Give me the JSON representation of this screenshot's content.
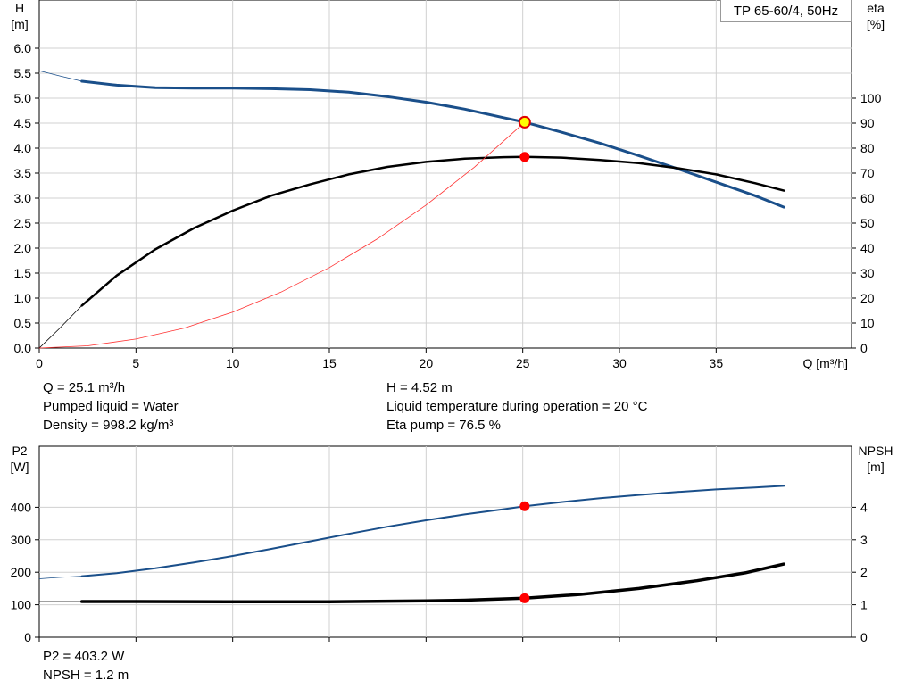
{
  "chart_data": [
    {
      "type": "line",
      "title": "TP 65-60/4, 50Hz",
      "xlabel": "Q [m³/h]",
      "ylabel_left": [
        "H",
        "[m]"
      ],
      "ylabel_right": [
        "eta",
        "[%]"
      ],
      "xlim": [
        0,
        42
      ],
      "ylim_left": [
        0,
        6
      ],
      "ylim_right": [
        0,
        120
      ],
      "x_ticks": [
        0,
        5,
        10,
        15,
        20,
        25,
        30,
        35
      ],
      "y_ticks_left": [
        "0.0",
        "0.5",
        "1.0",
        "1.5",
        "2.0",
        "2.5",
        "3.0",
        "3.5",
        "4.0",
        "4.5",
        "5.0",
        "5.5",
        "6.0"
      ],
      "y_ticks_right": [
        "0",
        "10",
        "20",
        "30",
        "40",
        "50",
        "60",
        "70",
        "80",
        "90",
        "100"
      ],
      "grid": true,
      "series": [
        {
          "name": "H",
          "color": "#1a4f8a",
          "axis": "left",
          "extrapolated": [
            [
              0,
              5.55
            ],
            [
              1,
              5.45
            ],
            [
              2.2,
              5.34
            ]
          ],
          "points": [
            [
              2.2,
              5.34
            ],
            [
              4,
              5.26
            ],
            [
              6,
              5.21
            ],
            [
              8,
              5.2
            ],
            [
              10,
              5.2
            ],
            [
              12,
              5.19
            ],
            [
              14,
              5.17
            ],
            [
              16,
              5.12
            ],
            [
              18,
              5.03
            ],
            [
              20,
              4.92
            ],
            [
              22,
              4.78
            ],
            [
              24,
              4.61
            ],
            [
              25.1,
              4.52
            ],
            [
              27,
              4.32
            ],
            [
              29,
              4.1
            ],
            [
              31,
              3.85
            ],
            [
              33,
              3.59
            ],
            [
              35,
              3.32
            ],
            [
              37,
              3.05
            ],
            [
              38.5,
              2.82
            ]
          ]
        },
        {
          "name": "eta",
          "color": "#000000",
          "axis": "right",
          "extrapolated": [
            [
              0,
              0
            ],
            [
              1,
              7.5
            ],
            [
              2.2,
              17
            ]
          ],
          "points": [
            [
              2.2,
              17
            ],
            [
              4,
              29
            ],
            [
              6,
              39.5
            ],
            [
              8,
              48
            ],
            [
              10,
              55
            ],
            [
              12,
              61
            ],
            [
              14,
              65.5
            ],
            [
              16,
              69.5
            ],
            [
              18,
              72.5
            ],
            [
              20,
              74.5
            ],
            [
              22,
              75.8
            ],
            [
              24,
              76.4
            ],
            [
              25.1,
              76.5
            ],
            [
              27,
              76.2
            ],
            [
              29,
              75.3
            ],
            [
              31,
              74
            ],
            [
              33,
              72
            ],
            [
              35,
              69.5
            ],
            [
              37,
              66
            ],
            [
              38.5,
              63
            ]
          ]
        },
        {
          "name": "system",
          "color": "#ff3333",
          "axis": "left",
          "points": [
            [
              0,
              0
            ],
            [
              2.5,
              0.045
            ],
            [
              5,
              0.18
            ],
            [
              7.5,
              0.4
            ],
            [
              10,
              0.72
            ],
            [
              12.5,
              1.12
            ],
            [
              15,
              1.61
            ],
            [
              17.5,
              2.19
            ],
            [
              20,
              2.86
            ],
            [
              22.5,
              3.62
            ],
            [
              25.1,
              4.52
            ]
          ]
        }
      ],
      "markers": [
        {
          "x": 25.1,
          "y": 4.52,
          "axis": "left",
          "fill": "#ffff00",
          "stroke": "#e00000"
        },
        {
          "x": 25.1,
          "y": 76.5,
          "axis": "right",
          "fill": "#ff0000",
          "stroke": "#ff0000"
        }
      ]
    },
    {
      "type": "line",
      "ylabel_left": [
        "P2",
        "[W]"
      ],
      "ylabel_right": [
        "NPSH",
        "[m]"
      ],
      "xlim": [
        0,
        42
      ],
      "ylim_left": [
        0,
        500
      ],
      "ylim_right": [
        0,
        5
      ],
      "y_ticks_left": [
        "0",
        "100",
        "200",
        "300",
        "400"
      ],
      "y_ticks_right": [
        "0",
        "1",
        "2",
        "3",
        "4"
      ],
      "grid": true,
      "series": [
        {
          "name": "P2",
          "color": "#1a4f8a",
          "axis": "left",
          "extrapolated": [
            [
              0,
              180
            ],
            [
              1,
              184
            ],
            [
              2.2,
              188
            ]
          ],
          "points": [
            [
              2.2,
              188
            ],
            [
              4,
              197
            ],
            [
              6,
              212
            ],
            [
              8,
              230
            ],
            [
              10,
              250
            ],
            [
              12,
              272
            ],
            [
              14,
              295
            ],
            [
              16,
              318
            ],
            [
              18,
              340
            ],
            [
              20,
              360
            ],
            [
              22,
              378
            ],
            [
              24,
              394
            ],
            [
              25.1,
              403.2
            ],
            [
              27,
              416
            ],
            [
              29,
              428
            ],
            [
              31,
              438
            ],
            [
              33,
              447
            ],
            [
              35,
              455
            ],
            [
              37,
              461
            ],
            [
              38.5,
              466
            ]
          ]
        },
        {
          "name": "NPSH",
          "color": "#000000",
          "axis": "right",
          "bold": true,
          "extrapolated": [
            [
              0,
              1.1
            ],
            [
              2.2,
              1.1
            ]
          ],
          "points": [
            [
              2.2,
              1.1
            ],
            [
              5,
              1.1
            ],
            [
              10,
              1.09
            ],
            [
              15,
              1.09
            ],
            [
              20,
              1.12
            ],
            [
              22,
              1.14
            ],
            [
              25.1,
              1.2
            ],
            [
              28,
              1.32
            ],
            [
              31,
              1.5
            ],
            [
              34,
              1.74
            ],
            [
              36.5,
              1.98
            ],
            [
              38.5,
              2.25
            ]
          ]
        }
      ],
      "markers": [
        {
          "x": 25.1,
          "y": 403.2,
          "axis": "left",
          "fill": "#ff0000",
          "stroke": "#ff0000"
        },
        {
          "x": 25.1,
          "y": 1.2,
          "axis": "right",
          "fill": "#ff0000",
          "stroke": "#ff0000"
        }
      ]
    }
  ],
  "info_top_left": [
    "Q = 25.1 m³/h",
    "Pumped liquid = Water",
    "Density = 998.2 kg/m³"
  ],
  "info_top_right": [
    "H = 4.52 m",
    "Liquid temperature during operation = 20 °C",
    "Eta pump = 76.5 %"
  ],
  "info_bottom_left": [
    "P2 = 403.2 W",
    "NPSH = 1.2 m"
  ]
}
